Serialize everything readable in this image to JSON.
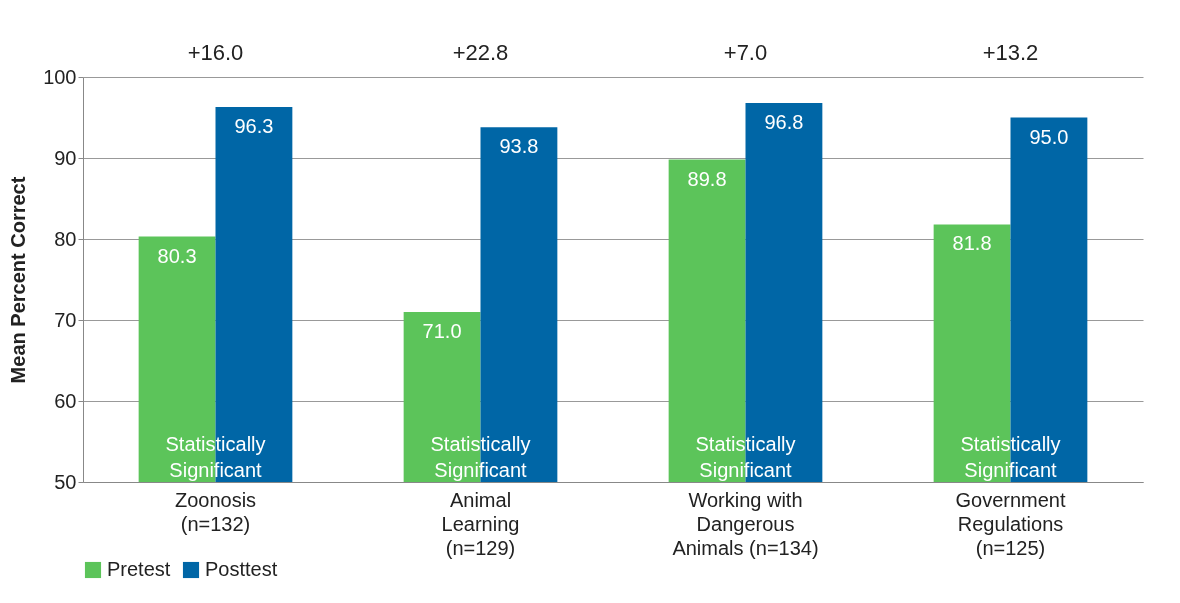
{
  "chart_data": {
    "type": "bar",
    "ylabel": "Mean Percent Correct",
    "categories": [
      "Zoonosis\n(n=132)",
      "Animal\nLearning\n(n=129)",
      "Working with\nDangerous\nAnimals (n=134)",
      "Government\nRegulations\n(n=125)"
    ],
    "series": [
      {
        "name": "Pretest",
        "color": "#5cc45a",
        "values": [
          80.3,
          71.0,
          89.8,
          81.8
        ],
        "value_labels": [
          "80.3",
          "71.0",
          "89.8",
          "81.8"
        ]
      },
      {
        "name": "Posttest",
        "color": "#0066a6",
        "values": [
          96.3,
          93.8,
          96.8,
          95.0
        ],
        "value_labels": [
          "96.3",
          "93.8",
          "96.8",
          "95.0"
        ]
      }
    ],
    "ylim": [
      50,
      100
    ],
    "yticks": [
      50,
      60,
      70,
      80,
      90,
      100
    ],
    "grid": "y",
    "legend": "bottom",
    "annotations": [
      "+16.0",
      "+22.8",
      "+7.0",
      "+13.2",
      "Statistically Significant",
      "Statistically Significant",
      "Statistically Significant",
      "Statistically Significant"
    ]
  }
}
